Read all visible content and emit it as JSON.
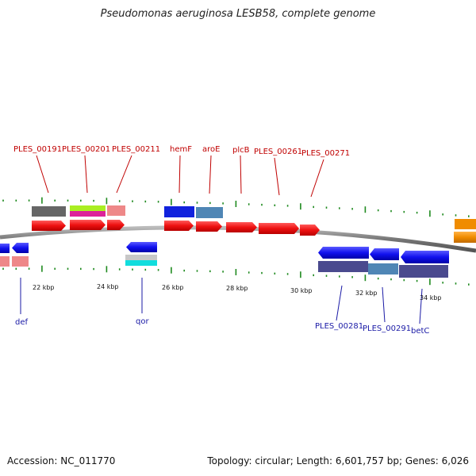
{
  "title": "Pseudomonas aeruginosa LESB58, complete genome",
  "footer": {
    "accession": "Accession: NC_011770",
    "summary": "Topology: circular; Length: 6,601,757 bp; Genes: 6,026"
  },
  "colors": {
    "forward_gene": "#ee1111",
    "reverse_gene": "#1111ee",
    "label_top": "#c00000",
    "label_bottom": "#1a1aa6",
    "tick": "#1f8a1f",
    "backbone": "#777777"
  },
  "scale": {
    "unit": "kbp",
    "labels": [
      "22 kbp",
      "24 kbp",
      "26 kbp",
      "28 kbp",
      "30 kbp",
      "32 kbp",
      "34 kbp"
    ]
  },
  "top_gene_labels": [
    "PLES_00191",
    "PLES_00201",
    "PLES_00211",
    "hemF",
    "aroE",
    "plcB",
    "PLES_00261",
    "PLES_00271"
  ],
  "bottom_gene_labels": [
    "def",
    "qor",
    "PLES_00281",
    "PLES_00291",
    "betC"
  ]
}
